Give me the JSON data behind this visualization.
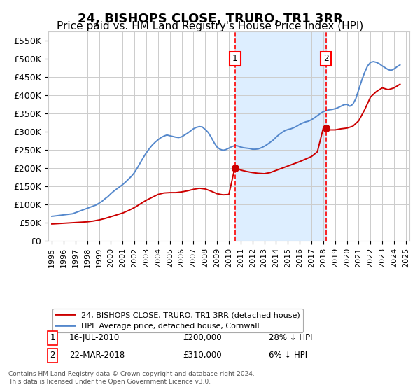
{
  "title": "24, BISHOPS CLOSE, TRURO, TR1 3RR",
  "subtitle": "Price paid vs. HM Land Registry's House Price Index (HPI)",
  "title_fontsize": 13,
  "subtitle_fontsize": 11,
  "ylabel_fontsize": 9,
  "xlabel_fontsize": 8,
  "ylim": [
    0,
    575000
  ],
  "yticks": [
    0,
    50000,
    100000,
    150000,
    200000,
    250000,
    300000,
    350000,
    400000,
    450000,
    500000,
    550000
  ],
  "ytick_labels": [
    "£0",
    "£50K",
    "£100K",
    "£150K",
    "£200K",
    "£250K",
    "£300K",
    "£350K",
    "£400K",
    "£450K",
    "£500K",
    "£550K"
  ],
  "red_line_label": "24, BISHOPS CLOSE, TRURO, TR1 3RR (detached house)",
  "blue_line_label": "HPI: Average price, detached house, Cornwall",
  "purchase1_date": 2010.54,
  "purchase1_price": 200000,
  "purchase1_label": "1",
  "purchase1_text": "16-JUL-2010",
  "purchase1_amount": "£200,000",
  "purchase1_hpi": "28% ↓ HPI",
  "purchase2_date": 2018.22,
  "purchase2_price": 310000,
  "purchase2_label": "2",
  "purchase2_text": "22-MAR-2018",
  "purchase2_amount": "£310,000",
  "purchase2_hpi": "6% ↓ HPI",
  "red_line_color": "#cc0000",
  "blue_line_color": "#5588cc",
  "shade_color": "#ddeeff",
  "grid_color": "#cccccc",
  "background_color": "#ffffff",
  "footnote1": "Contains HM Land Registry data © Crown copyright and database right 2024.",
  "footnote2": "This data is licensed under the Open Government Licence v3.0.",
  "hpi_years": [
    1995.0,
    1995.25,
    1995.5,
    1995.75,
    1996.0,
    1996.25,
    1996.5,
    1996.75,
    1997.0,
    1997.25,
    1997.5,
    1997.75,
    1998.0,
    1998.25,
    1998.5,
    1998.75,
    1999.0,
    1999.25,
    1999.5,
    1999.75,
    2000.0,
    2000.25,
    2000.5,
    2000.75,
    2001.0,
    2001.25,
    2001.5,
    2001.75,
    2002.0,
    2002.25,
    2002.5,
    2002.75,
    2003.0,
    2003.25,
    2003.5,
    2003.75,
    2004.0,
    2004.25,
    2004.5,
    2004.75,
    2005.0,
    2005.25,
    2005.5,
    2005.75,
    2006.0,
    2006.25,
    2006.5,
    2006.75,
    2007.0,
    2007.25,
    2007.5,
    2007.75,
    2008.0,
    2008.25,
    2008.5,
    2008.75,
    2009.0,
    2009.25,
    2009.5,
    2009.75,
    2010.0,
    2010.25,
    2010.5,
    2010.75,
    2011.0,
    2011.25,
    2011.5,
    2011.75,
    2012.0,
    2012.25,
    2012.5,
    2012.75,
    2013.0,
    2013.25,
    2013.5,
    2013.75,
    2014.0,
    2014.25,
    2014.5,
    2014.75,
    2015.0,
    2015.25,
    2015.5,
    2015.75,
    2016.0,
    2016.25,
    2016.5,
    2016.75,
    2017.0,
    2017.25,
    2017.5,
    2017.75,
    2018.0,
    2018.25,
    2018.5,
    2018.75,
    2019.0,
    2019.25,
    2019.5,
    2019.75,
    2020.0,
    2020.25,
    2020.5,
    2020.75,
    2021.0,
    2021.25,
    2021.5,
    2021.75,
    2022.0,
    2022.25,
    2022.5,
    2022.75,
    2023.0,
    2023.25,
    2023.5,
    2023.75,
    2024.0,
    2024.25,
    2024.5
  ],
  "hpi_values": [
    68000,
    69000,
    70000,
    71000,
    72000,
    73000,
    74000,
    75000,
    78000,
    81000,
    84000,
    87000,
    90000,
    93000,
    96000,
    99000,
    104000,
    109000,
    116000,
    122000,
    130000,
    137000,
    143000,
    149000,
    155000,
    162000,
    170000,
    178000,
    188000,
    201000,
    215000,
    229000,
    242000,
    253000,
    263000,
    271000,
    278000,
    284000,
    288000,
    291000,
    289000,
    287000,
    285000,
    284000,
    286000,
    291000,
    296000,
    302000,
    308000,
    312000,
    314000,
    313000,
    306000,
    298000,
    285000,
    270000,
    258000,
    252000,
    249000,
    251000,
    255000,
    259000,
    262000,
    261000,
    258000,
    256000,
    255000,
    254000,
    252000,
    252000,
    253000,
    256000,
    260000,
    265000,
    271000,
    277000,
    285000,
    292000,
    298000,
    303000,
    306000,
    308000,
    311000,
    315000,
    320000,
    324000,
    327000,
    329000,
    333000,
    338000,
    344000,
    350000,
    355000,
    358000,
    360000,
    361000,
    363000,
    366000,
    370000,
    374000,
    375000,
    370000,
    375000,
    390000,
    415000,
    440000,
    462000,
    480000,
    490000,
    492000,
    490000,
    486000,
    480000,
    475000,
    470000,
    468000,
    472000,
    478000,
    483000
  ],
  "red_years": [
    1995.0,
    1995.5,
    1996.0,
    1996.5,
    1997.0,
    1997.5,
    1998.0,
    1998.5,
    1999.0,
    1999.5,
    2000.0,
    2000.5,
    2001.0,
    2001.5,
    2002.0,
    2002.5,
    2003.0,
    2003.5,
    2004.0,
    2004.5,
    2005.0,
    2005.5,
    2006.0,
    2006.5,
    2007.0,
    2007.5,
    2008.0,
    2008.5,
    2009.0,
    2009.5,
    2010.0,
    2010.5,
    2010.75,
    2011.0,
    2011.5,
    2012.0,
    2012.5,
    2013.0,
    2013.5,
    2014.0,
    2014.5,
    2015.0,
    2015.5,
    2016.0,
    2016.5,
    2017.0,
    2017.5,
    2018.0,
    2018.25,
    2018.5,
    2019.0,
    2019.5,
    2020.0,
    2020.5,
    2021.0,
    2021.5,
    2022.0,
    2022.5,
    2023.0,
    2023.5,
    2024.0,
    2024.5
  ],
  "red_values": [
    47000,
    48000,
    49000,
    50000,
    51000,
    52000,
    53000,
    55000,
    58000,
    62000,
    67000,
    72000,
    77000,
    84000,
    92000,
    102000,
    112000,
    120000,
    128000,
    132000,
    133000,
    133000,
    135000,
    138000,
    142000,
    145000,
    143000,
    137000,
    130000,
    127000,
    128000,
    200000,
    200000,
    195000,
    191000,
    188000,
    186000,
    185000,
    188000,
    194000,
    200000,
    206000,
    212000,
    218000,
    225000,
    232000,
    245000,
    310000,
    310000,
    305000,
    305000,
    308000,
    310000,
    315000,
    330000,
    360000,
    395000,
    410000,
    420000,
    415000,
    420000,
    430000
  ]
}
